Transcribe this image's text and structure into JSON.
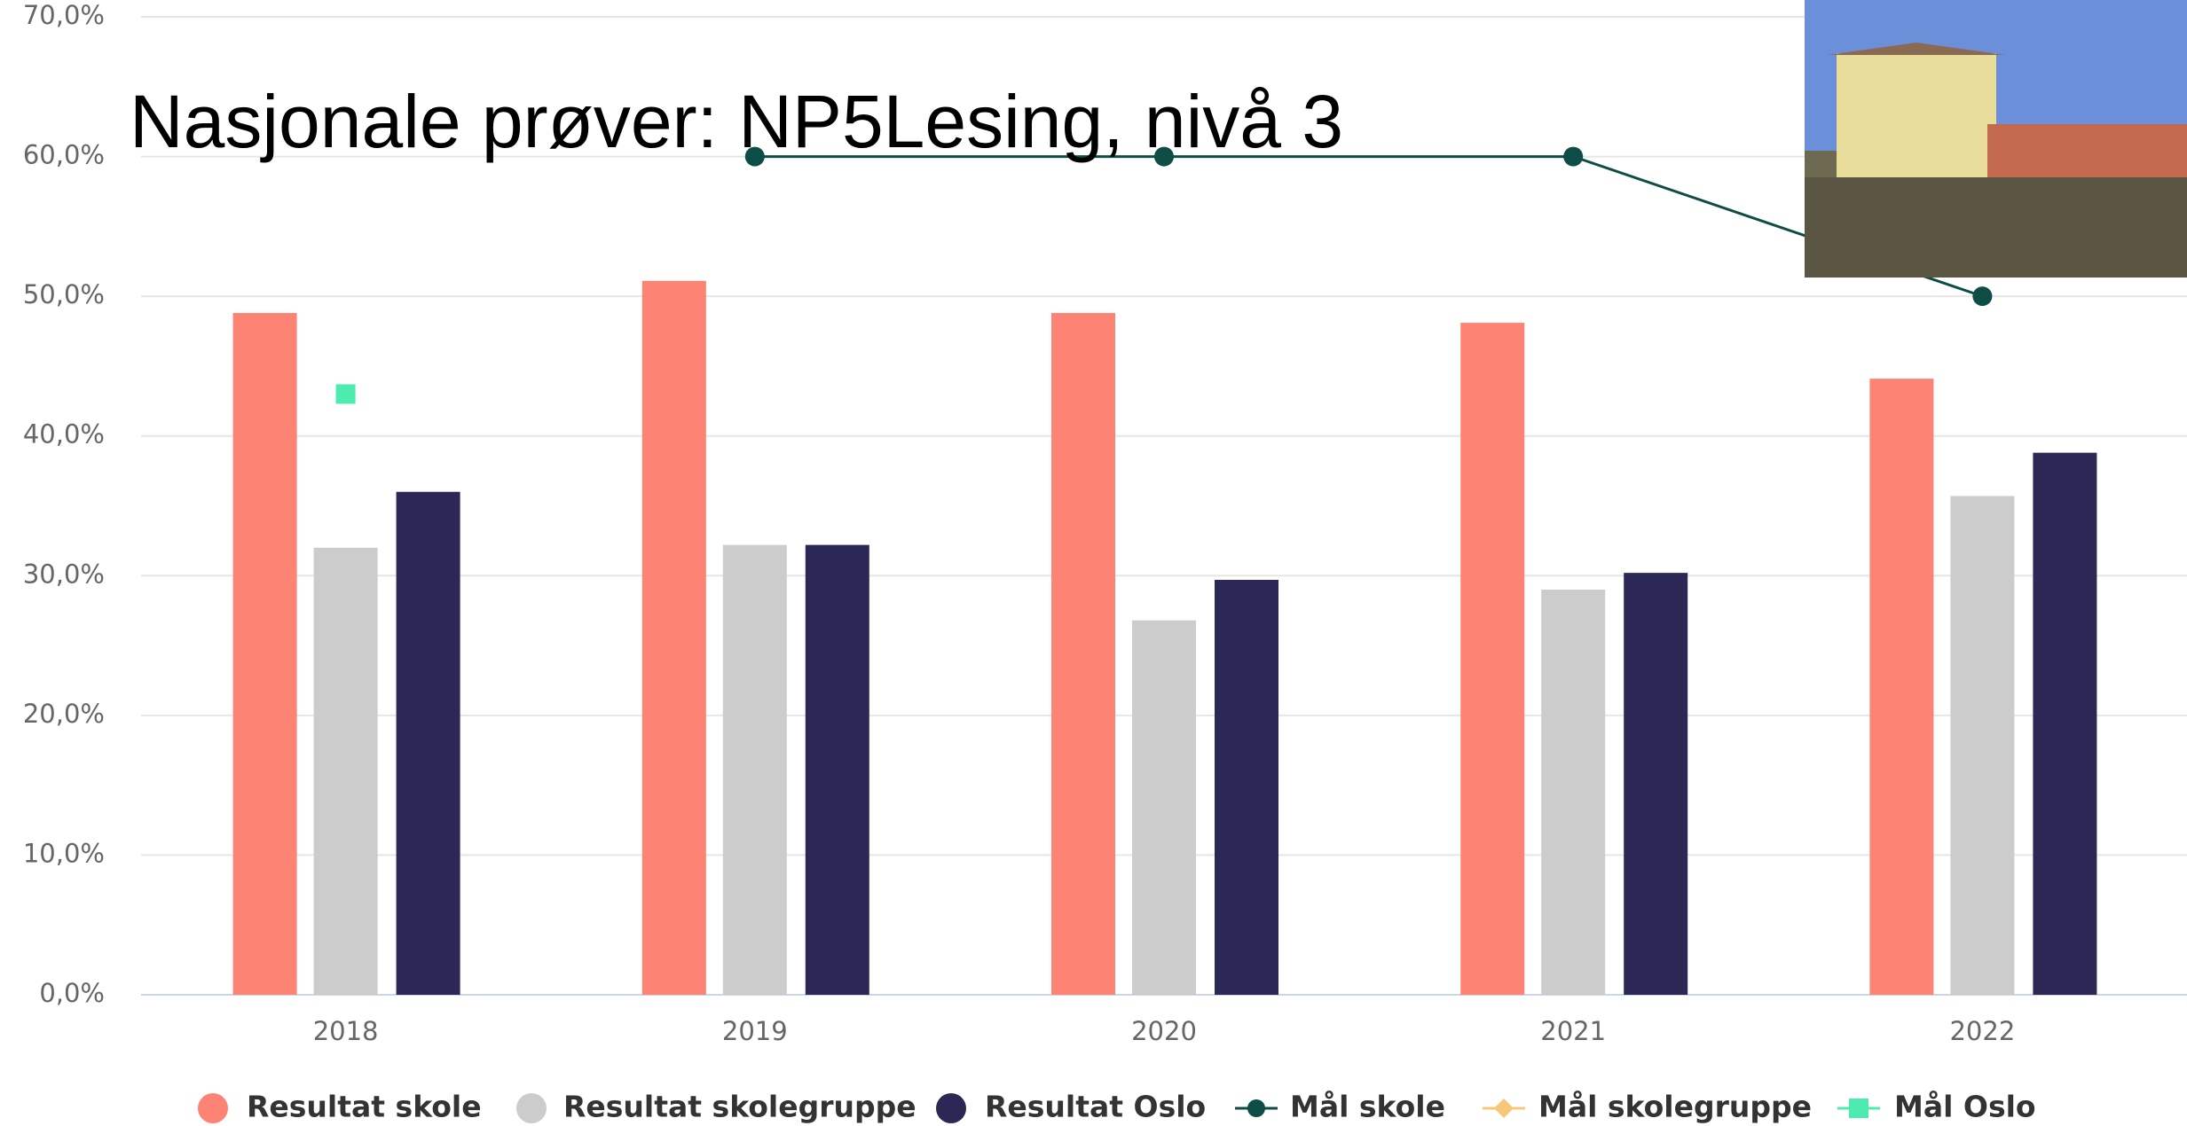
{
  "chart_data": {
    "type": "bar",
    "title": "Nasjonale prøver: NP5Lesing,  nivå 3",
    "categories": [
      "2018",
      "2019",
      "2020",
      "2021",
      "2022"
    ],
    "series": [
      {
        "name": "Resultat skole",
        "type": "bar",
        "color": "#fd8374",
        "values": [
          48.8,
          51.1,
          48.8,
          48.1,
          44.1
        ]
      },
      {
        "name": "Resultat skolegruppe",
        "type": "bar",
        "color": "#cccccc",
        "values": [
          32.0,
          32.2,
          26.8,
          29.0,
          35.7
        ]
      },
      {
        "name": "Resultat Oslo",
        "type": "bar",
        "color": "#2b2856",
        "values": [
          36.0,
          32.2,
          29.7,
          30.2,
          38.8
        ]
      },
      {
        "name": "Mål skole",
        "type": "line",
        "color": "#0d4d45",
        "values": [
          null,
          60,
          60,
          60,
          50
        ]
      },
      {
        "name": "Mål skolegruppe",
        "type": "line",
        "color": "#f8c87a",
        "values": [
          null,
          null,
          null,
          null,
          null
        ]
      },
      {
        "name": "Mål Oslo",
        "type": "scatter",
        "color": "#4debb0",
        "values": [
          43,
          null,
          null,
          null,
          null
        ]
      }
    ],
    "ylim": [
      0,
      70
    ],
    "yticks": [
      {
        "value": 0,
        "label": "0,0%"
      },
      {
        "value": 10,
        "label": "10,0%"
      },
      {
        "value": 20,
        "label": "20,0%"
      },
      {
        "value": 30,
        "label": "30,0%"
      },
      {
        "value": 40,
        "label": "40,0%"
      },
      {
        "value": 50,
        "label": "50,0%"
      },
      {
        "value": 60,
        "label": "60,0%"
      },
      {
        "value": 70,
        "label": "70,0%"
      }
    ],
    "grid": true
  }
}
